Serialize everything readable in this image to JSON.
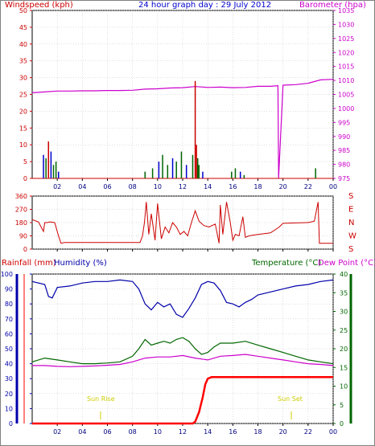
{
  "header": {
    "title": "24 hour graph day : 29 July 2012",
    "left_label": "Windspeed (kph)",
    "right_label": "Barometer (hpa)"
  },
  "mid_panel": {
    "dir_letters": [
      "S",
      "E",
      "N",
      "W",
      "S"
    ]
  },
  "bottom_panel": {
    "rain_label": "Rainfall (mm)",
    "humidity_label": "Humidity (%)",
    "temp_label": "Temperature (°C)",
    "dew_label": "Dew Point (°C)",
    "sunrise_label": "Sun Rise",
    "sunset_label": "Sun Set"
  },
  "colors": {
    "wind": "#cc0000",
    "gust": "#006600",
    "wind_blue": "#0000cc",
    "barometer": "#cc00cc",
    "humidity": "#0000aa",
    "temperature": "#006600",
    "dewpoint": "#cc00cc",
    "rain": "#ff0000",
    "sun": "#cccc00",
    "grid": "#c0c0c0"
  },
  "chart_data": [
    {
      "type": "line",
      "name": "wind_barometer",
      "x_ticks": [
        "02",
        "04",
        "06",
        "08",
        "10",
        "12",
        "14",
        "16",
        "18",
        "20",
        "22",
        "00"
      ],
      "xlim": [
        0,
        24
      ],
      "ylim_left": [
        0,
        50
      ],
      "y_ticks_left": [
        0,
        5,
        10,
        15,
        20,
        25,
        30,
        35,
        40,
        45,
        50
      ],
      "ylim_right": [
        975,
        1035
      ],
      "y_ticks_right": [
        975,
        980,
        985,
        990,
        995,
        1000,
        1005,
        1010,
        1015,
        1020,
        1025,
        1030,
        1035
      ],
      "series": [
        {
          "name": "Barometer (hpa)",
          "axis": "right",
          "x": [
            0,
            1,
            2,
            3,
            4,
            5,
            6,
            7,
            8,
            9,
            10,
            11,
            12,
            13,
            14,
            15,
            16,
            17,
            18,
            19,
            19.6,
            19.65,
            20,
            21,
            22,
            23,
            24
          ],
          "y": [
            1005.6,
            1005.9,
            1006.2,
            1006.2,
            1006.3,
            1006.3,
            1006.4,
            1006.4,
            1006.5,
            1006.9,
            1007.0,
            1007.3,
            1007.4,
            1007.8,
            1007.5,
            1007.6,
            1007.4,
            1007.5,
            1007.9,
            1007.9,
            1008.1,
            975,
            1008.3,
            1008.5,
            1009.0,
            1010.2,
            1010.4
          ]
        },
        {
          "name": "Wind gust spikes (kph)",
          "axis": "left",
          "x": [
            0.9,
            1.1,
            1.3,
            1.5,
            1.7,
            1.9,
            2.1,
            9.0,
            9.6,
            10.1,
            10.4,
            10.8,
            11.2,
            11.5,
            11.9,
            12.3,
            12.8,
            13.0,
            13.1,
            13.2,
            13.3,
            13.6,
            15.9,
            16.2,
            16.6,
            16.9,
            22.6
          ],
          "y": [
            7,
            6,
            11,
            8,
            4,
            5,
            2,
            2,
            3,
            5,
            7,
            4,
            6,
            5,
            8,
            4,
            7,
            29,
            10,
            6,
            4,
            2,
            2,
            3,
            2,
            1,
            3
          ]
        }
      ]
    },
    {
      "type": "line",
      "name": "wind_direction",
      "xlim": [
        0,
        24
      ],
      "ylim": [
        0,
        360
      ],
      "y_ticks": [
        0,
        90,
        180,
        270,
        360
      ],
      "series": [
        {
          "name": "Wind direction (deg)",
          "x": [
            0,
            0.5,
            0.9,
            1.0,
            1.2,
            1.4,
            1.8,
            2.1,
            2.3,
            2.6,
            8.6,
            8.8,
            8.95,
            9.1,
            9.3,
            9.5,
            9.8,
            10.0,
            10.3,
            10.6,
            10.9,
            11.2,
            11.5,
            11.8,
            12.1,
            12.4,
            12.7,
            13.0,
            13.3,
            13.7,
            14.1,
            14.6,
            14.9,
            15.0,
            15.2,
            15.5,
            15.8,
            16.0,
            16.2,
            16.5,
            16.8,
            17.0,
            17.3,
            17.6,
            18.0,
            19.0,
            19.7,
            20.0,
            21.0,
            22.0,
            22.5,
            22.8,
            22.9,
            24
          ],
          "y": [
            200,
            185,
            120,
            180,
            180,
            185,
            180,
            90,
            40,
            45,
            45,
            90,
            180,
            320,
            100,
            240,
            60,
            310,
            70,
            150,
            110,
            180,
            150,
            100,
            120,
            90,
            180,
            260,
            190,
            160,
            150,
            170,
            40,
            300,
            100,
            320,
            180,
            60,
            100,
            90,
            220,
            80,
            90,
            95,
            100,
            110,
            150,
            175,
            178,
            180,
            190,
            320,
            40,
            40
          ]
        }
      ]
    },
    {
      "type": "line",
      "name": "humidity_temp_rain",
      "xlim": [
        0,
        24
      ],
      "ylim_left": [
        0,
        100
      ],
      "y_ticks_left": [
        0,
        10,
        20,
        30,
        40,
        50,
        60,
        70,
        80,
        90,
        100
      ],
      "ylim_right": [
        0,
        40
      ],
      "y_ticks_right": [
        0,
        5,
        10,
        15,
        20,
        25,
        30,
        35,
        40
      ],
      "series": [
        {
          "name": "Humidity (%)",
          "axis": "left",
          "x": [
            0,
            1,
            1.3,
            1.6,
            2,
            3,
            4,
            5,
            6,
            7,
            8,
            8.5,
            9,
            9.5,
            10,
            10.5,
            11,
            11.5,
            12,
            12.5,
            13,
            13.5,
            14,
            14.5,
            15,
            15.5,
            16,
            16.5,
            17,
            17.5,
            18,
            19,
            20,
            21,
            22,
            23,
            24
          ],
          "y": [
            95,
            93,
            85,
            84,
            91,
            92,
            94,
            95,
            95,
            96,
            95,
            90,
            80,
            76,
            81,
            78,
            80,
            73,
            71,
            77,
            84,
            93,
            95,
            94,
            89,
            81,
            80,
            78,
            81,
            83,
            86,
            88,
            90,
            92,
            93,
            95,
            96
          ]
        },
        {
          "name": "Temperature (°C)",
          "axis": "right",
          "x": [
            0,
            1,
            2,
            3,
            4,
            5,
            6,
            7,
            8,
            8.5,
            9,
            9.5,
            10,
            10.5,
            11,
            11.5,
            12,
            12.5,
            13,
            13.5,
            14,
            14.5,
            15,
            16,
            17,
            18,
            19,
            20,
            21,
            22,
            23,
            24
          ],
          "y": [
            16.5,
            17.5,
            17.0,
            16.5,
            16.0,
            16.0,
            16.2,
            16.5,
            18.0,
            20.0,
            22.5,
            21.0,
            21.5,
            22.0,
            21.5,
            22.5,
            23.0,
            22.0,
            20.0,
            18.5,
            19.0,
            20.5,
            21.5,
            21.5,
            22.0,
            21.0,
            20.0,
            19.0,
            18.0,
            17.0,
            16.5,
            16.0
          ]
        },
        {
          "name": "Dew Point (°C)",
          "axis": "right",
          "x": [
            0,
            1,
            2,
            3,
            4,
            5,
            6,
            7,
            8,
            9,
            10,
            11,
            12,
            13,
            14,
            15,
            16,
            17,
            18,
            19,
            20,
            21,
            22,
            23,
            24
          ],
          "y": [
            15.5,
            15.5,
            15.3,
            15.2,
            15.3,
            15.4,
            15.6,
            15.8,
            16.5,
            17.5,
            17.8,
            17.8,
            18.2,
            17.5,
            17.0,
            18.0,
            18.2,
            18.5,
            18.0,
            17.5,
            17.0,
            16.5,
            16.0,
            15.8,
            15.5
          ]
        },
        {
          "name": "Rainfall (mm)",
          "axis": "right",
          "x": [
            0,
            12.8,
            13.0,
            13.3,
            13.6,
            13.8,
            14.0,
            14.3,
            24
          ],
          "y": [
            0,
            0,
            0.5,
            3.0,
            7.0,
            10.5,
            12.0,
            12.4,
            12.4
          ]
        }
      ]
    }
  ]
}
